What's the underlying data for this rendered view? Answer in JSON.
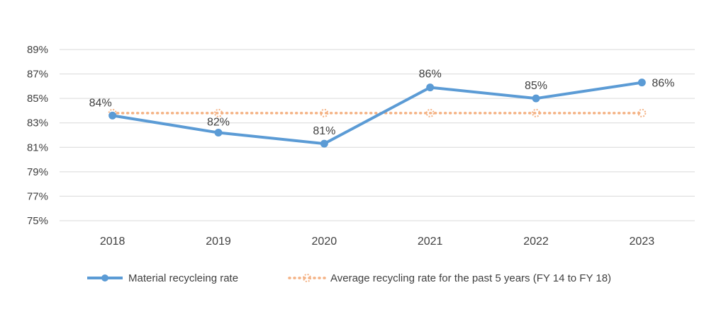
{
  "chart_data": {
    "type": "line",
    "title": "",
    "xlabel": "",
    "ylabel": "",
    "categories": [
      "2018",
      "2019",
      "2020",
      "2021",
      "2022",
      "2023"
    ],
    "ylim": [
      75,
      89
    ],
    "yticks": [
      75,
      77,
      79,
      81,
      83,
      85,
      87,
      89
    ],
    "ytick_labels": [
      "75%",
      "77%",
      "79%",
      "81%",
      "83%",
      "85%",
      "87%",
      "89%"
    ],
    "grid": true,
    "legend_position": "bottom",
    "series": [
      {
        "name": "Material recycleing rate",
        "values": [
          83.6,
          82.2,
          81.3,
          85.9,
          85.0,
          86.3
        ],
        "labels": [
          "84%",
          "82%",
          "81%",
          "86%",
          "85%",
          "86%"
        ],
        "color": "#5B9BD5",
        "style": "solid-marker"
      },
      {
        "name": "Average recycling rate for the past 5 years (FY 14 to FY 18)",
        "values": [
          83.8,
          83.8,
          83.8,
          83.8,
          83.8,
          83.8
        ],
        "color": "#F4B183",
        "style": "dotted-marker"
      }
    ]
  }
}
